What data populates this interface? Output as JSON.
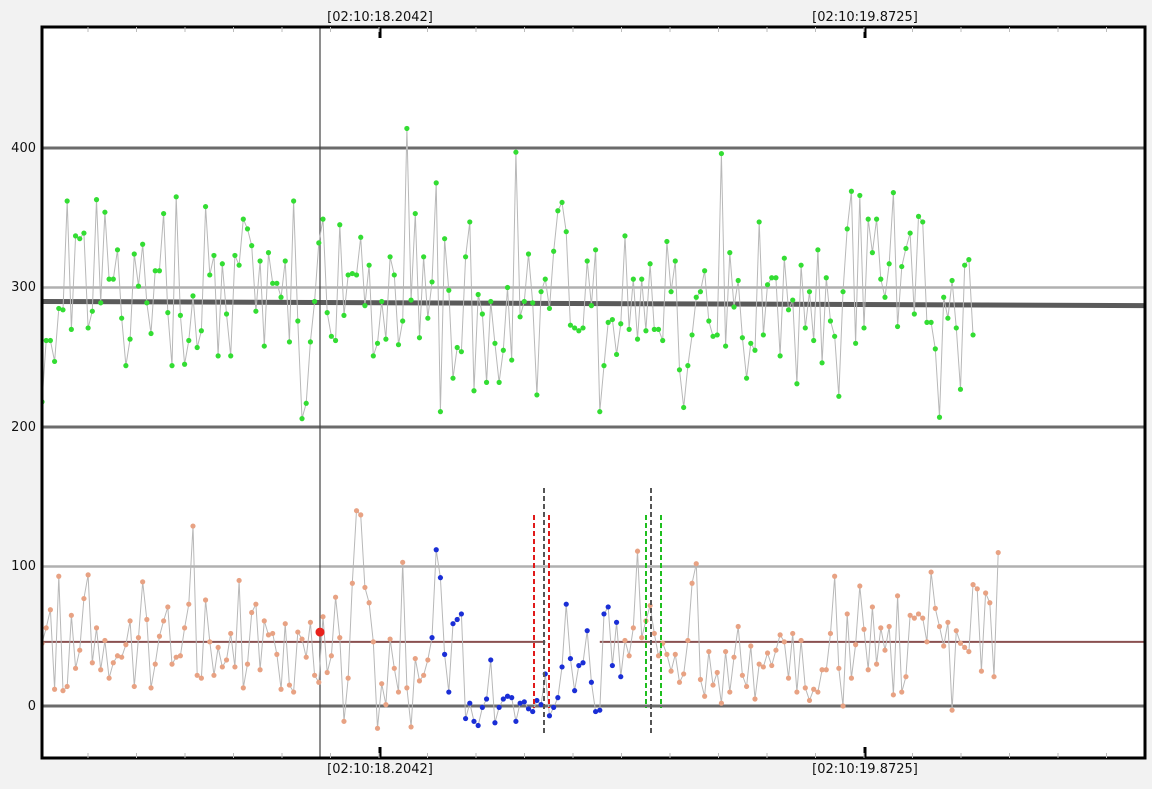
{
  "chart_data": {
    "type": "scatter",
    "title": "",
    "xlabel": "",
    "ylabel": "",
    "ylim": [
      -40,
      490
    ],
    "grid": true,
    "y_ticks": [
      "400",
      "300",
      "200",
      "100",
      "0"
    ],
    "time_markers": [
      "[02:10:18.2042]",
      "[02:10:19.8725]"
    ],
    "cursor_time": "[02:10:18.2042]",
    "reference_lines": {
      "gray": [
        400,
        300,
        200,
        100,
        0
      ],
      "upper_baseline": [
        290,
        287
      ],
      "lower_baseline_left": 46,
      "lower_baseline_right": 46
    },
    "colors": {
      "upper_series": "#33dd33",
      "lower_series": "#e8a283",
      "segment_series": "#1a2ed6",
      "selected_point": "#e8211b",
      "red_markers": "#e01a1a",
      "green_markers": "#1fbf1f",
      "gray_markers": "#555555"
    },
    "series": [
      {
        "values": [
          218,
          262,
          262,
          247,
          285,
          284,
          362,
          270,
          337,
          335,
          339,
          271,
          283,
          363,
          289,
          354,
          306,
          306,
          327,
          278,
          244,
          263,
          324,
          301,
          331,
          289,
          267,
          312,
          312,
          353,
          282,
          244,
          365,
          280,
          245,
          262,
          294,
          257,
          269,
          358,
          309,
          323,
          251,
          317,
          281,
          251,
          323,
          316,
          349,
          342,
          330,
          283,
          319,
          258,
          325,
          303,
          303,
          293,
          319,
          261,
          362,
          276,
          206,
          217,
          261,
          290,
          332,
          349,
          282,
          265,
          262,
          345,
          280,
          309,
          310,
          309,
          336,
          287,
          316,
          251,
          260,
          290,
          263,
          322,
          309,
          259,
          276,
          414,
          291,
          353,
          264,
          322,
          278,
          304,
          375,
          211,
          335,
          298,
          235,
          257,
          254,
          322,
          347,
          226,
          295,
          281,
          232,
          290,
          260,
          232,
          255,
          300,
          248,
          397,
          279,
          290,
          324,
          289,
          223,
          297,
          306,
          285,
          326,
          355,
          361,
          340,
          273,
          271,
          269,
          271,
          319,
          287,
          327,
          211,
          244,
          275,
          277,
          252,
          274,
          337,
          270,
          306,
          263,
          306,
          269,
          317,
          270,
          270,
          262,
          333,
          297,
          319,
          241,
          214,
          244,
          266,
          293,
          297,
          312,
          276,
          265,
          266,
          396,
          258,
          325,
          286,
          305,
          264,
          235,
          260,
          255,
          347,
          266,
          302,
          307,
          307,
          251,
          321,
          284,
          291,
          231,
          316,
          271,
          297,
          262,
          327,
          246,
          307,
          276,
          265,
          222,
          297,
          342,
          369,
          260,
          366,
          271,
          349,
          325,
          349,
          306,
          293,
          317,
          368,
          272,
          315,
          328,
          339,
          281,
          351,
          347,
          275,
          275,
          256,
          207,
          293,
          278,
          305,
          271,
          227,
          316,
          320,
          266
        ],
        "draw_line": true
      },
      {
        "values": [
          45,
          56,
          69,
          12,
          93,
          11,
          14,
          65,
          27,
          40,
          77,
          94,
          31,
          56,
          26,
          47,
          20,
          31,
          36,
          35,
          44,
          61,
          14,
          49,
          89,
          62,
          13,
          30,
          50,
          61,
          71,
          30,
          35,
          36,
          56,
          73,
          129,
          22,
          20,
          76,
          46,
          22,
          42,
          28,
          33,
          52,
          28,
          90,
          13,
          30,
          67,
          73,
          26,
          61,
          51,
          52,
          37,
          12,
          59,
          15,
          10,
          53,
          48,
          35,
          60,
          22,
          17,
          64,
          24,
          36,
          78,
          49,
          -11,
          20,
          88,
          140,
          137,
          85,
          74,
          46,
          -16,
          16,
          1,
          48,
          27,
          10,
          103,
          13,
          -15,
          34,
          18,
          22,
          33
        ],
        "draw_line": true
      },
      {
        "values": [
          49,
          112,
          92,
          37,
          10,
          59,
          62,
          66,
          -9,
          2,
          -11,
          -14,
          -1,
          5,
          33,
          -12,
          -1,
          5,
          7,
          6,
          -11,
          2,
          3,
          -2,
          -4,
          4,
          1,
          23,
          -7,
          -1,
          6,
          28,
          73,
          34,
          11,
          29,
          31,
          54,
          17,
          -4,
          -3,
          66,
          71,
          29,
          60,
          21
        ],
        "draw_line": true
      },
      {
        "values": [
          47,
          36,
          56,
          111,
          49,
          61,
          72,
          52,
          36,
          45,
          37,
          25,
          37,
          17,
          23,
          47,
          88,
          102,
          19,
          7,
          39,
          15,
          24,
          2,
          39,
          10,
          35,
          57,
          22,
          14,
          43,
          5,
          30,
          28,
          38,
          29,
          40,
          51,
          46,
          20,
          52,
          10,
          47,
          13,
          4,
          12,
          10,
          26,
          26,
          52,
          93,
          27,
          0,
          66,
          20,
          44,
          86,
          55,
          26,
          71,
          30,
          56,
          40,
          57,
          8,
          79,
          10,
          21,
          65,
          63,
          66,
          63,
          46,
          96,
          70,
          57,
          43,
          60,
          -3,
          54,
          45,
          42,
          39,
          87,
          84,
          25,
          81,
          74,
          21,
          110
        ],
        "draw_line": true
      }
    ],
    "selected_point": {
      "x_index": 67,
      "value": 53
    }
  }
}
